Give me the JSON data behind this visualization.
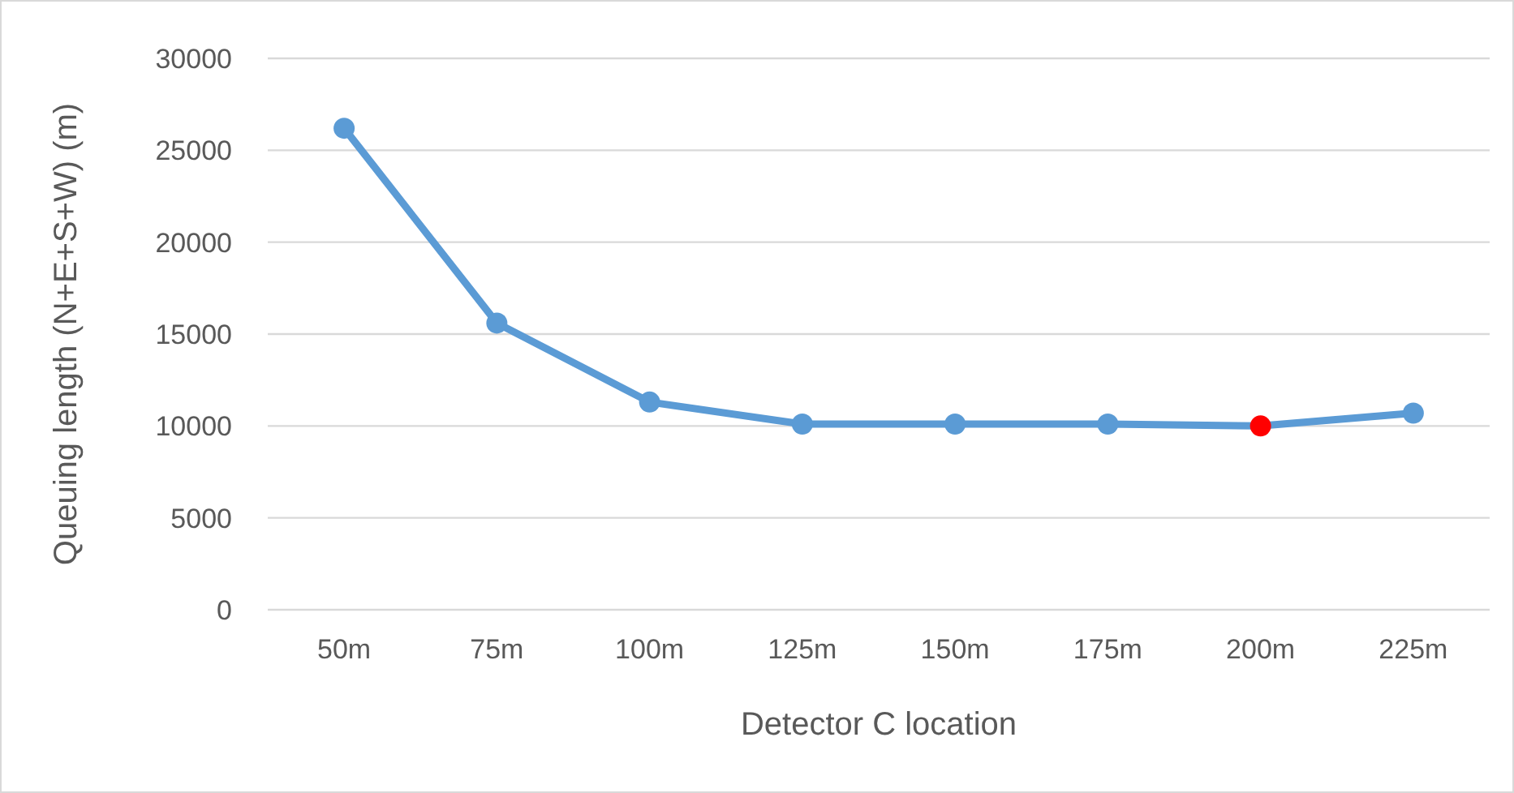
{
  "chart_data": {
    "type": "line",
    "xlabel": "Detector C location",
    "ylabel": "Queuing length (N+E+S+W) (m)",
    "categories": [
      "50m",
      "75m",
      "100m",
      "125m",
      "150m",
      "175m",
      "200m",
      "225m"
    ],
    "series": [
      {
        "color": "#5b9bd5",
        "colors": [
          "#5b9bd5",
          "#5b9bd5",
          "#5b9bd5",
          "#5b9bd5",
          "#5b9bd5",
          "#5b9bd5",
          "#ff0000",
          "#5b9bd5"
        ],
        "values": [
          26200,
          15600,
          11300,
          10100,
          10100,
          10100,
          10000,
          10700
        ]
      }
    ],
    "ylim": [
      0,
      30000
    ],
    "yticks": [
      0,
      5000,
      10000,
      15000,
      20000,
      25000,
      30000
    ],
    "grid": "y",
    "marker": "circle",
    "line_style": "solid"
  }
}
